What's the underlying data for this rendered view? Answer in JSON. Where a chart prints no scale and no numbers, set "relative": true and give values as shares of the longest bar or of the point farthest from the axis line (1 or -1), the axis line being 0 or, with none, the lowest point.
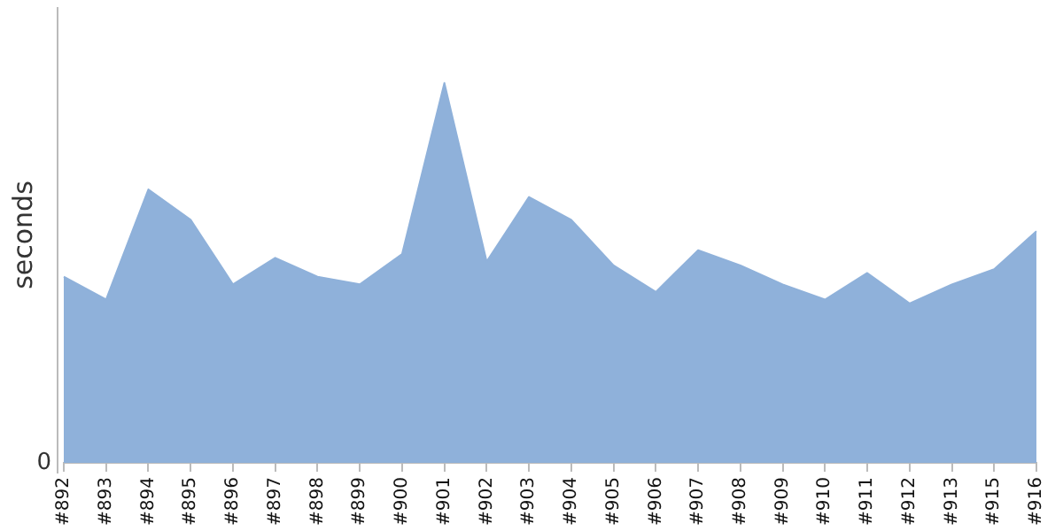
{
  "chart_data": {
    "type": "area",
    "ylabel": "seconds",
    "relative": true,
    "legend": false,
    "annotations": [
      "0"
    ],
    "categories": [
      "#892",
      "#893",
      "#894",
      "#895",
      "#896",
      "#897",
      "#898",
      "#899",
      "#900",
      "#901",
      "#902",
      "#903",
      "#904",
      "#905",
      "#906",
      "#907",
      "#908",
      "#909",
      "#910",
      "#911",
      "#912",
      "#913",
      "#915",
      "#916"
    ],
    "series": [
      {
        "color": "#8fb1da",
        "values": [
          0.49,
          0.43,
          0.72,
          0.64,
          0.47,
          0.54,
          0.49,
          0.47,
          0.55,
          1,
          0.53,
          0.7,
          0.64,
          0.52,
          0.45,
          0.56,
          0.52,
          0.47,
          0.43,
          0.5,
          0.42,
          0.47,
          0.51,
          0.61
        ]
      }
    ]
  }
}
